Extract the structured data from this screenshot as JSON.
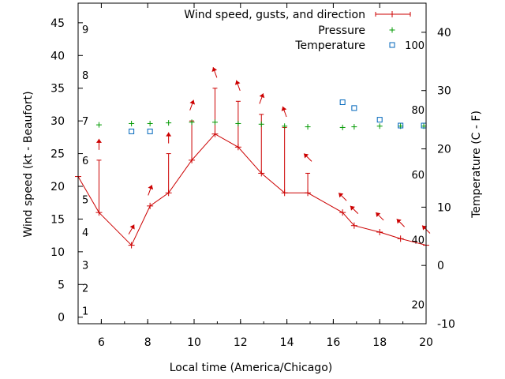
{
  "chart_data": {
    "type": "line",
    "xlabel": "Local time (America/Chicago)",
    "ylabel": "Wind speed (kt - Beaufort)",
    "y2label": "Temperature (C - F)",
    "xlim": [
      5,
      20
    ],
    "ylim": [
      -1,
      48
    ],
    "y2lim": [
      -10,
      45
    ],
    "x_ticks": [
      6,
      8,
      10,
      12,
      14,
      16,
      18,
      20
    ],
    "y_ticks": [
      0,
      5,
      10,
      15,
      20,
      25,
      30,
      35,
      40,
      45
    ],
    "y2_ticks": [
      -10,
      0,
      10,
      20,
      30,
      40
    ],
    "beaufort_labels": [
      {
        "text": "1",
        "kt": 1
      },
      {
        "text": "2",
        "kt": 4.5
      },
      {
        "text": "3",
        "kt": 8
      },
      {
        "text": "4",
        "kt": 13
      },
      {
        "text": "5",
        "kt": 18
      },
      {
        "text": "6",
        "kt": 24
      },
      {
        "text": "7",
        "kt": 30
      },
      {
        "text": "8",
        "kt": 37
      },
      {
        "text": "9",
        "kt": 44
      }
    ],
    "fahrenheit_labels": [
      {
        "text": "20",
        "c": -6.7
      },
      {
        "text": "40",
        "c": 4.4
      },
      {
        "text": "60",
        "c": 15.6
      },
      {
        "text": "80",
        "c": 26.7
      },
      {
        "text": "100",
        "c": 37.8
      }
    ],
    "legend": {
      "position": "top-right",
      "entries": [
        "Wind speed, gusts, and direction",
        "Pressure",
        "Temperature"
      ]
    },
    "series": [
      {
        "name": "Wind speed, gusts, and direction",
        "color": "#cc0000",
        "x": [
          5,
          5.9,
          7.3,
          8.1,
          8.9,
          9.9,
          10.9,
          11.9,
          12.9,
          13.9,
          14.9,
          16.4,
          16.9,
          18,
          18.9,
          20
        ],
        "values": [
          21.5,
          16,
          11,
          17,
          19,
          24,
          28,
          26,
          22,
          19,
          19,
          16,
          14,
          13,
          12,
          11
        ],
        "gusts": [
          null,
          24,
          null,
          null,
          25,
          30,
          35,
          33,
          31,
          29,
          22,
          null,
          null,
          null,
          null,
          null
        ],
        "direction_deg": [
          null,
          0,
          30,
          20,
          0,
          20,
          340,
          340,
          20,
          340,
          315,
          315,
          315,
          315,
          315,
          315
        ]
      },
      {
        "name": "Pressure",
        "color": "#009900",
        "x": [
          5.9,
          7.3,
          8.1,
          8.9,
          9.9,
          10.9,
          11.9,
          12.9,
          13.9,
          14.9,
          16.4,
          16.9,
          18,
          18.9,
          19.9
        ],
        "values": [
          29.4,
          29.6,
          29.6,
          29.7,
          29.8,
          29.8,
          29.6,
          29.5,
          29.2,
          29.1,
          29.0,
          29.1,
          29.2,
          29.2,
          29.2
        ]
      },
      {
        "name": "Temperature",
        "color": "#0066bb",
        "x": [
          7.3,
          8.1,
          16.4,
          16.9,
          18,
          18.9,
          19.9
        ],
        "values": [
          23,
          23,
          28,
          27,
          25,
          24,
          24
        ]
      }
    ]
  }
}
